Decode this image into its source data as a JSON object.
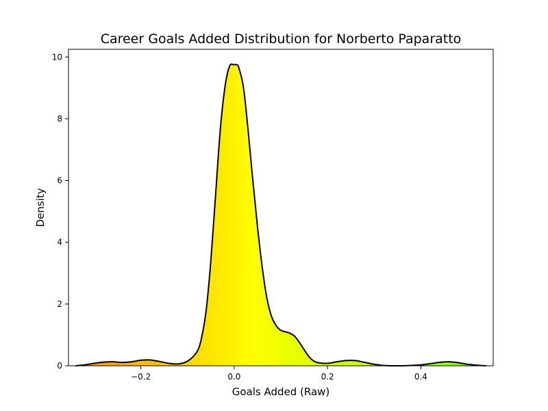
{
  "chart_data": {
    "type": "area",
    "title": "Career Goals Added Distribution for Norberto Paparatto",
    "xlabel": "Goals Added (Raw)",
    "ylabel": "Density",
    "xlim": [
      -0.355,
      0.555
    ],
    "ylim": [
      0,
      10.25
    ],
    "x_ticks": [
      -0.2,
      0.0,
      0.2,
      0.4
    ],
    "x_tick_labels": [
      "−0.2",
      "0.0",
      "0.2",
      "0.4"
    ],
    "y_ticks": [
      0,
      2,
      4,
      6,
      8,
      10
    ],
    "y_tick_labels": [
      "0",
      "2",
      "4",
      "6",
      "8",
      "10"
    ],
    "grid": false,
    "legend": "none",
    "fill_gradient": {
      "stops": [
        {
          "x": -0.34,
          "color": "#ff8c00"
        },
        {
          "x": 0.04,
          "color": "#ffff00"
        },
        {
          "x": 0.54,
          "color": "#7fff00"
        }
      ]
    },
    "line_color": "#000000",
    "series": [
      {
        "x": [
          -0.34,
          -0.32,
          -0.3,
          -0.28,
          -0.26,
          -0.24,
          -0.22,
          -0.2,
          -0.18,
          -0.16,
          -0.14,
          -0.12,
          -0.1,
          -0.08,
          -0.07,
          -0.06,
          -0.05,
          -0.04,
          -0.03,
          -0.02,
          -0.01,
          0.0,
          0.005,
          0.01,
          0.02,
          0.03,
          0.04,
          0.05,
          0.06,
          0.07,
          0.08,
          0.09,
          0.1,
          0.11,
          0.12,
          0.13,
          0.14,
          0.15,
          0.16,
          0.17,
          0.18,
          0.2,
          0.22,
          0.24,
          0.26,
          0.28,
          0.3,
          0.32,
          0.34,
          0.36,
          0.38,
          0.4,
          0.42,
          0.44,
          0.46,
          0.48,
          0.5,
          0.52,
          0.54
        ],
        "y": [
          0.0,
          0.03,
          0.08,
          0.12,
          0.13,
          0.11,
          0.13,
          0.18,
          0.19,
          0.14,
          0.08,
          0.06,
          0.15,
          0.45,
          0.9,
          1.8,
          3.4,
          5.5,
          7.6,
          9.0,
          9.7,
          9.75,
          9.75,
          9.65,
          9.0,
          7.6,
          6.0,
          4.5,
          3.2,
          2.2,
          1.6,
          1.3,
          1.15,
          1.1,
          1.05,
          0.95,
          0.75,
          0.52,
          0.3,
          0.16,
          0.1,
          0.08,
          0.13,
          0.17,
          0.17,
          0.11,
          0.05,
          0.01,
          0.0,
          0.0,
          0.01,
          0.03,
          0.07,
          0.11,
          0.13,
          0.1,
          0.05,
          0.02,
          0.0
        ]
      }
    ]
  }
}
